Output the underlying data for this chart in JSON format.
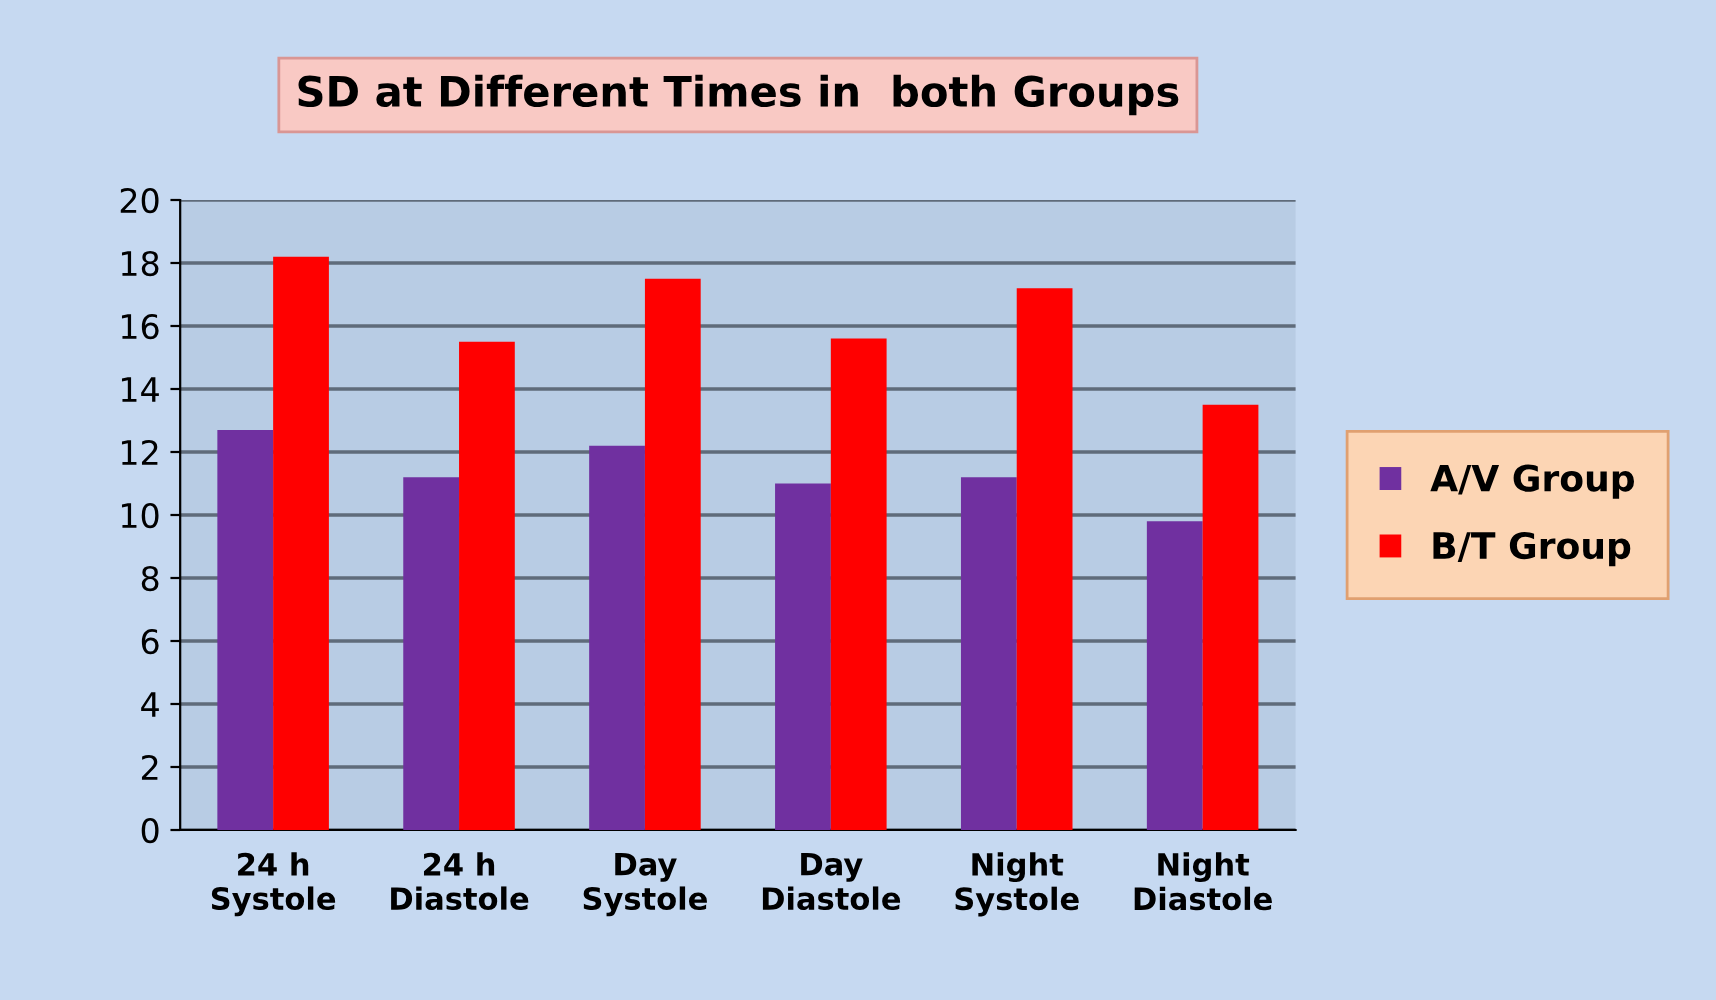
{
  "chart_data": {
    "type": "bar",
    "title": "SD at Different Times in  both Groups",
    "categories": [
      "24 h\nSystole",
      "24 h\nDiastole",
      "Day\nSystole",
      "Day\nDiastole",
      "Night\nSystole",
      "Night\nDiastole"
    ],
    "series": [
      {
        "name": "A/V Group",
        "color": "#7030a0",
        "values": [
          12.7,
          11.2,
          12.2,
          11.0,
          11.2,
          9.8
        ]
      },
      {
        "name": "B/T Group",
        "color": "#ff0000",
        "values": [
          18.2,
          15.5,
          17.5,
          15.6,
          17.2,
          13.5
        ]
      }
    ],
    "ylim": [
      0,
      20
    ],
    "yticks": [
      0,
      2,
      4,
      6,
      8,
      10,
      12,
      14,
      16,
      18,
      20
    ],
    "grid": "y",
    "legend": "right"
  }
}
